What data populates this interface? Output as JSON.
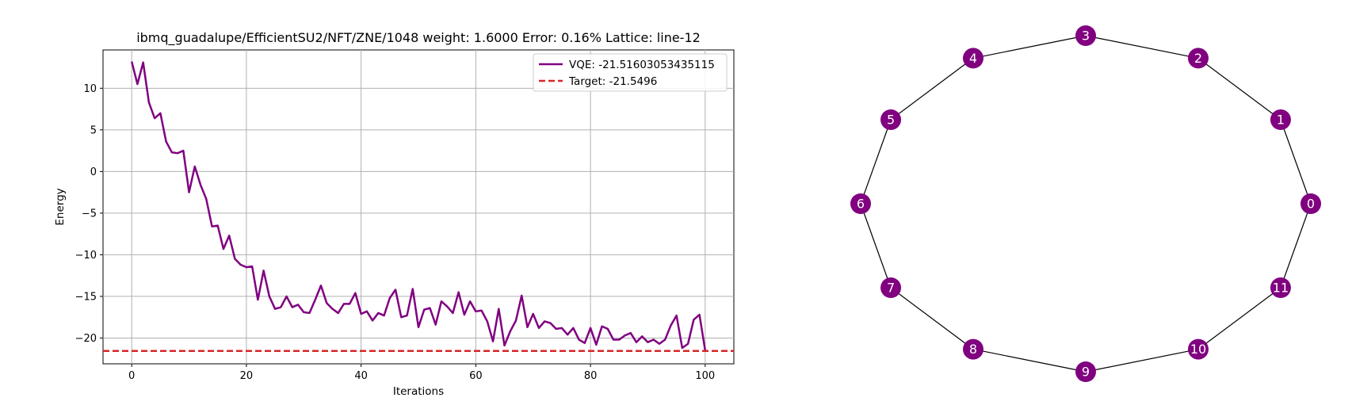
{
  "chart_data": [
    {
      "type": "line",
      "title": "ibmq_guadalupe/EfficientSU2/NFT/ZNE/1048 weight: 1.6000 Error: 0.16% Lattice: line-12",
      "xlabel": "Iterations",
      "ylabel": "Energy",
      "xlim": [
        -5,
        105
      ],
      "ylim": [
        -23.1,
        14.6
      ],
      "xticks": [
        0,
        20,
        40,
        60,
        80,
        100
      ],
      "yticks": [
        -20,
        -15,
        -10,
        -5,
        0,
        5,
        10
      ],
      "grid": true,
      "legend_position": "top-right",
      "colors": {
        "vqe": "#800080",
        "target": "#d62728"
      },
      "series": [
        {
          "name": "VQE: -21.51603053435115",
          "style": "solid",
          "x": [
            0,
            1,
            2,
            3,
            4,
            5,
            6,
            7,
            8,
            9,
            10,
            11,
            12,
            13,
            14,
            15,
            16,
            17,
            18,
            19,
            20,
            21,
            22,
            23,
            24,
            25,
            26,
            27,
            28,
            29,
            30,
            31,
            32,
            33,
            34,
            35,
            36,
            37,
            38,
            39,
            40,
            41,
            42,
            43,
            44,
            45,
            46,
            47,
            48,
            49,
            50,
            51,
            52,
            53,
            54,
            55,
            56,
            57,
            58,
            59,
            60,
            61,
            62,
            63,
            64,
            65,
            66,
            67,
            68,
            69,
            70,
            71,
            72,
            73,
            74,
            75,
            76,
            77,
            78,
            79,
            80,
            81,
            82,
            83,
            84,
            85,
            86,
            87,
            88,
            89,
            90,
            91,
            92,
            93,
            94,
            95,
            96,
            97,
            98,
            99,
            100
          ],
          "y": [
            13.2,
            10.5,
            13.1,
            8.3,
            6.4,
            7.0,
            3.6,
            2.3,
            2.2,
            2.5,
            -2.5,
            0.6,
            -1.6,
            -3.3,
            -6.6,
            -6.5,
            -9.3,
            -7.7,
            -10.5,
            -11.2,
            -11.5,
            -11.4,
            -15.4,
            -11.9,
            -15.0,
            -16.5,
            -16.3,
            -15.0,
            -16.3,
            -16.0,
            -16.9,
            -17.0,
            -15.4,
            -13.7,
            -15.8,
            -16.5,
            -17.0,
            -15.9,
            -15.9,
            -14.6,
            -17.1,
            -16.8,
            -17.9,
            -17.0,
            -17.3,
            -15.2,
            -14.2,
            -17.5,
            -17.3,
            -14.1,
            -18.7,
            -16.6,
            -16.4,
            -18.4,
            -15.6,
            -16.2,
            -17.0,
            -14.5,
            -17.2,
            -15.6,
            -16.8,
            -16.7,
            -18.0,
            -20.4,
            -16.5,
            -20.9,
            -19.2,
            -17.9,
            -14.9,
            -18.7,
            -17.1,
            -18.8,
            -18.0,
            -18.2,
            -18.9,
            -18.8,
            -19.6,
            -18.8,
            -20.2,
            -20.6,
            -18.8,
            -20.8,
            -18.6,
            -18.9,
            -20.2,
            -20.2,
            -19.7,
            -19.4,
            -20.5,
            -19.8,
            -20.5,
            -20.2,
            -20.7,
            -20.2,
            -18.5,
            -17.3,
            -21.2,
            -20.7,
            -17.8,
            -17.2,
            -21.5
          ]
        },
        {
          "name": "Target: -21.5496",
          "style": "dashed",
          "constant": -21.5496
        }
      ]
    },
    {
      "type": "graph",
      "title": "",
      "layout": "circular",
      "node_color": "#800080",
      "edge_color": "#000000",
      "nodes": [
        "0",
        "1",
        "2",
        "3",
        "4",
        "5",
        "6",
        "7",
        "8",
        "9",
        "10",
        "11"
      ],
      "edges": [
        [
          "0",
          "1"
        ],
        [
          "1",
          "2"
        ],
        [
          "2",
          "3"
        ],
        [
          "3",
          "4"
        ],
        [
          "4",
          "5"
        ],
        [
          "5",
          "6"
        ],
        [
          "6",
          "7"
        ],
        [
          "7",
          "8"
        ],
        [
          "8",
          "9"
        ],
        [
          "9",
          "10"
        ],
        [
          "10",
          "11"
        ],
        [
          "11",
          "0"
        ]
      ]
    }
  ]
}
